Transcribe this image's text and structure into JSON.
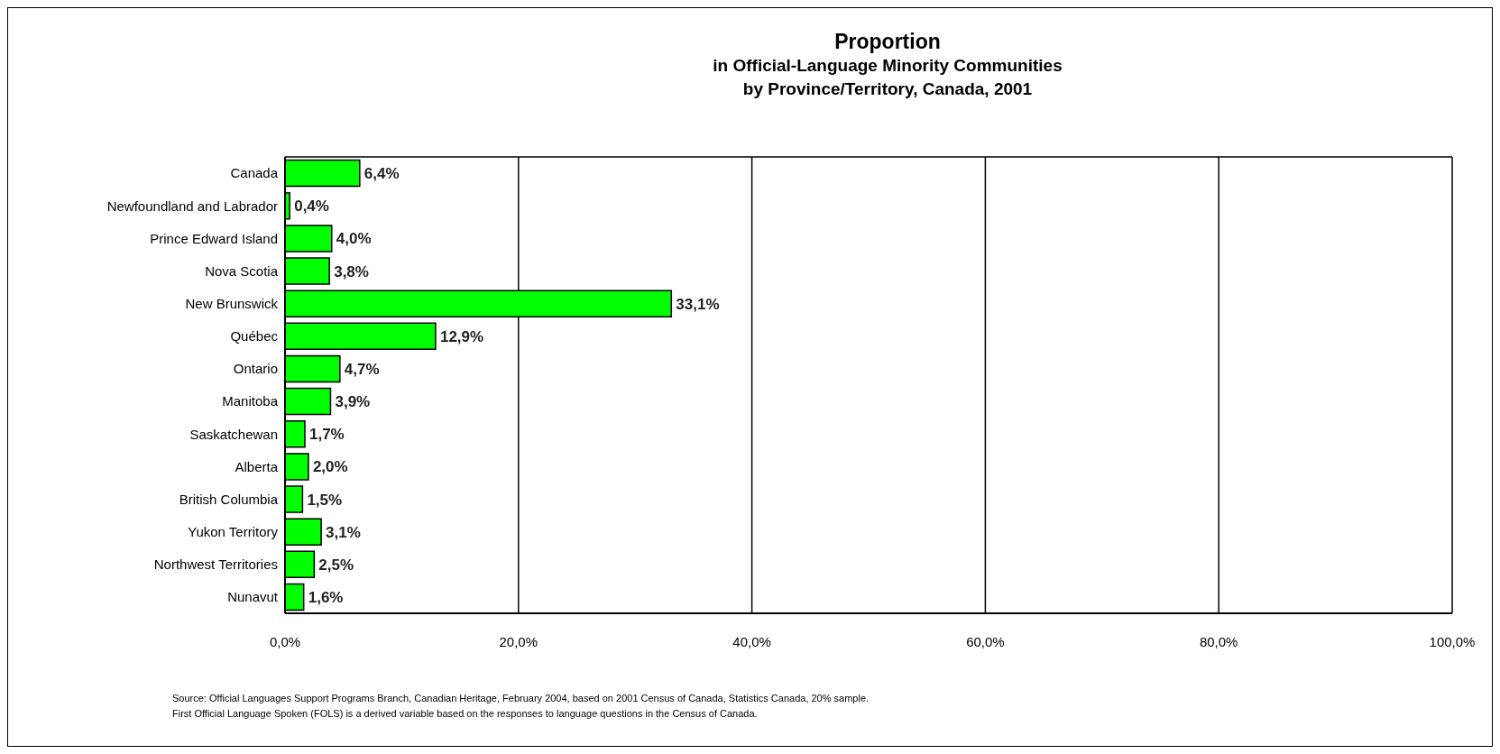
{
  "chart_data": {
    "type": "bar",
    "orientation": "horizontal",
    "title": "Proportion",
    "subtitle": "in Official-Language Minority Communities\nby Province/Territory, Canada, 2001",
    "categories": [
      "Canada",
      "Newfoundland and Labrador",
      "Prince Edward Island",
      "Nova Scotia",
      "New Brunswick",
      "Québec",
      "Ontario",
      "Manitoba",
      "Saskatchewan",
      "Alberta",
      "British Columbia",
      "Yukon Territory",
      "Northwest Territories",
      "Nunavut"
    ],
    "values": [
      6.4,
      0.4,
      4.0,
      3.8,
      33.1,
      12.9,
      4.7,
      3.9,
      1.7,
      2.0,
      1.5,
      3.1,
      2.5,
      1.6
    ],
    "value_labels": [
      "6,4%",
      "0,4%",
      "4,0%",
      "3,8%",
      "33,1%",
      "12,9%",
      "4,7%",
      "3,9%",
      "1,7%",
      "2,0%",
      "1,5%",
      "3,1%",
      "2,5%",
      "1,6%"
    ],
    "color": "#00ff00",
    "xlim": [
      0,
      100
    ],
    "xticks": [
      {
        "value": 0,
        "label": "0,0%"
      },
      {
        "value": 20,
        "label": "20,0%"
      },
      {
        "value": 40,
        "label": "40,0%"
      },
      {
        "value": 60,
        "label": "60,0%"
      },
      {
        "value": 80,
        "label": "80,0%"
      },
      {
        "value": 100,
        "label": "100,0%"
      }
    ],
    "grid": "x",
    "annotations": [
      "Source:  Official Languages Support Programs Branch, Canadian Heritage, February 2004, based on 2001 Census of Canada, Statistics Canada, 20% sample.",
      "First Official Language Spoken (FOLS) is a derived variable based on the responses to language questions in the Census of Canada."
    ]
  }
}
